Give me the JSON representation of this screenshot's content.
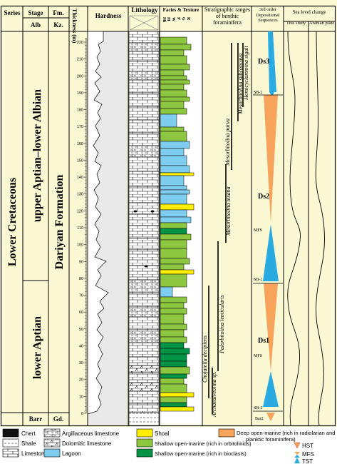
{
  "headers": {
    "series": "Series",
    "stage": "Stage",
    "fm": "Fm.",
    "thickness": "Thickness (m)",
    "hardness": "Hardness",
    "lithology": "Lithology",
    "facies": "Facies & Texture",
    "facies_letters": [
      "M",
      "W",
      "P",
      "G",
      "R"
    ],
    "stratigraphic": "Stratigraphic ranges of benthic foraminifera",
    "sequences": "3rd order Depositional Sequences",
    "sea_level": "Sea level change",
    "this_study": "This study",
    "arabian_plate": "Arabian plate"
  },
  "subheaders": {
    "alb": "Alb",
    "kz": "Kz.",
    "barr": "Barr",
    "gd": "Gd."
  },
  "series_label": "Lower Cretaceous",
  "stages": {
    "upper": "upper Aptian–lower Albian",
    "lower": "lower Aptian"
  },
  "formation": "Dariyan Formation",
  "thickness_ticks": [
    "0",
    "10",
    "20",
    "30",
    "40",
    "50",
    "60",
    "70",
    "80",
    "90",
    "100",
    "110",
    "120",
    "130",
    "140",
    "150",
    "160",
    "170",
    "180",
    "190",
    "200",
    "210",
    "220"
  ],
  "foraminifera": [
    "Chofatella decipiens",
    "Archaealveolina sp.",
    "Palorbitolina lenticularis",
    "Mesorbitolina texana",
    "Mesorbitolina parva",
    "Mesorbitolina subconcava",
    "Hemicyclammina sigali"
  ],
  "sequence_labels": {
    "ds1": "Ds1",
    "ds2": "Ds2",
    "ds3": "Ds3",
    "mfs1": "MFS",
    "mfs2": "MFS",
    "sb2_top": "SB-2",
    "sb2_mid": "SB-2",
    "sb2_bot": "SB-2",
    "bar2": "Bar2"
  },
  "legend": {
    "chert": "Chert",
    "shale": "Shale",
    "limestone": "Limestone",
    "argillaceous": "Argillaceous limestone",
    "dolomitic": "Dolomitic limestone",
    "lagoon": "Lagoon",
    "shoal": "Shoal",
    "shallow_orb": "Shallow open-marine (rich in orbitolinids)",
    "shallow_bio": "Shallow open-marine (rich in bioclasts)",
    "deep_1": "Deep open-marine (rich in radiolarian and",
    "deep_2": "planktic foraminifera)",
    "hst": "HST",
    "mfs": "MFS",
    "tst": "TST"
  },
  "colors": {
    "column_bg": "#fbf9d4",
    "lagoon": "#7fcdee",
    "shoal": "#ffee00",
    "shallow_orb": "#8dc63f",
    "shallow_bio": "#009245",
    "deep": "#f7a35c",
    "tst": "#29abe2"
  }
}
